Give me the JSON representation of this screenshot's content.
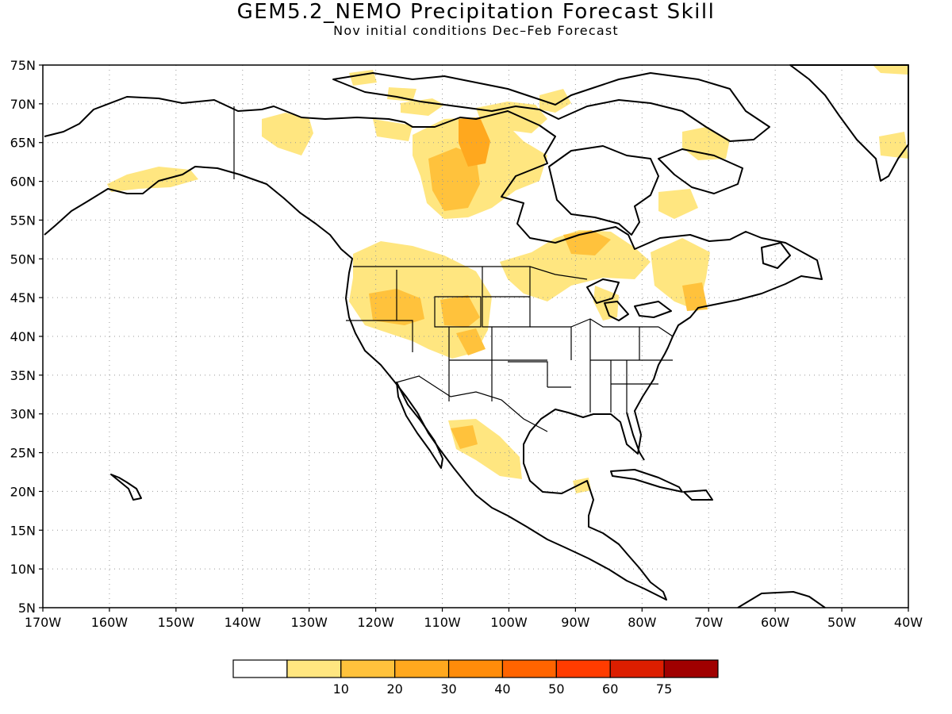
{
  "title": "GEM5.2_NEMO Precipitation Forecast Skill",
  "subtitle": "Nov initial conditions  Dec–Feb Forecast",
  "map": {
    "lon_range": [
      -170,
      -40
    ],
    "lat_range": [
      5,
      75
    ],
    "lon_ticks": [
      {
        "value": -170,
        "label": "170W"
      },
      {
        "value": -160,
        "label": "160W"
      },
      {
        "value": -150,
        "label": "150W"
      },
      {
        "value": -140,
        "label": "140W"
      },
      {
        "value": -130,
        "label": "130W"
      },
      {
        "value": -120,
        "label": "120W"
      },
      {
        "value": -110,
        "label": "110W"
      },
      {
        "value": -100,
        "label": "100W"
      },
      {
        "value": -90,
        "label": "90W"
      },
      {
        "value": -80,
        "label": "80W"
      },
      {
        "value": -70,
        "label": "70W"
      },
      {
        "value": -60,
        "label": "60W"
      },
      {
        "value": -50,
        "label": "50W"
      },
      {
        "value": -40,
        "label": "40W"
      }
    ],
    "lat_ticks": [
      {
        "value": 75,
        "label": "75N"
      },
      {
        "value": 70,
        "label": "70N"
      },
      {
        "value": 65,
        "label": "65N"
      },
      {
        "value": 60,
        "label": "60N"
      },
      {
        "value": 55,
        "label": "55N"
      },
      {
        "value": 50,
        "label": "50N"
      },
      {
        "value": 45,
        "label": "45N"
      },
      {
        "value": 40,
        "label": "40N"
      },
      {
        "value": 35,
        "label": "35N"
      },
      {
        "value": 30,
        "label": "30N"
      },
      {
        "value": 25,
        "label": "25N"
      },
      {
        "value": 20,
        "label": "20N"
      },
      {
        "value": 15,
        "label": "15N"
      },
      {
        "value": 10,
        "label": "10N"
      },
      {
        "value": 5,
        "label": "5N"
      }
    ],
    "grid": "dotted"
  },
  "colorbar": {
    "bins": [
      {
        "color": "#ffffff",
        "label": ""
      },
      {
        "color": "#ffe680",
        "label": "10"
      },
      {
        "color": "#ffc23c",
        "label": "20"
      },
      {
        "color": "#ffa81e",
        "label": "30"
      },
      {
        "color": "#ff8c0a",
        "label": "40"
      },
      {
        "color": "#ff6400",
        "label": "50"
      },
      {
        "color": "#ff3c00",
        "label": "60"
      },
      {
        "color": "#dc1e00",
        "label": "75"
      },
      {
        "color": "#a00000",
        "label": ""
      }
    ]
  }
}
